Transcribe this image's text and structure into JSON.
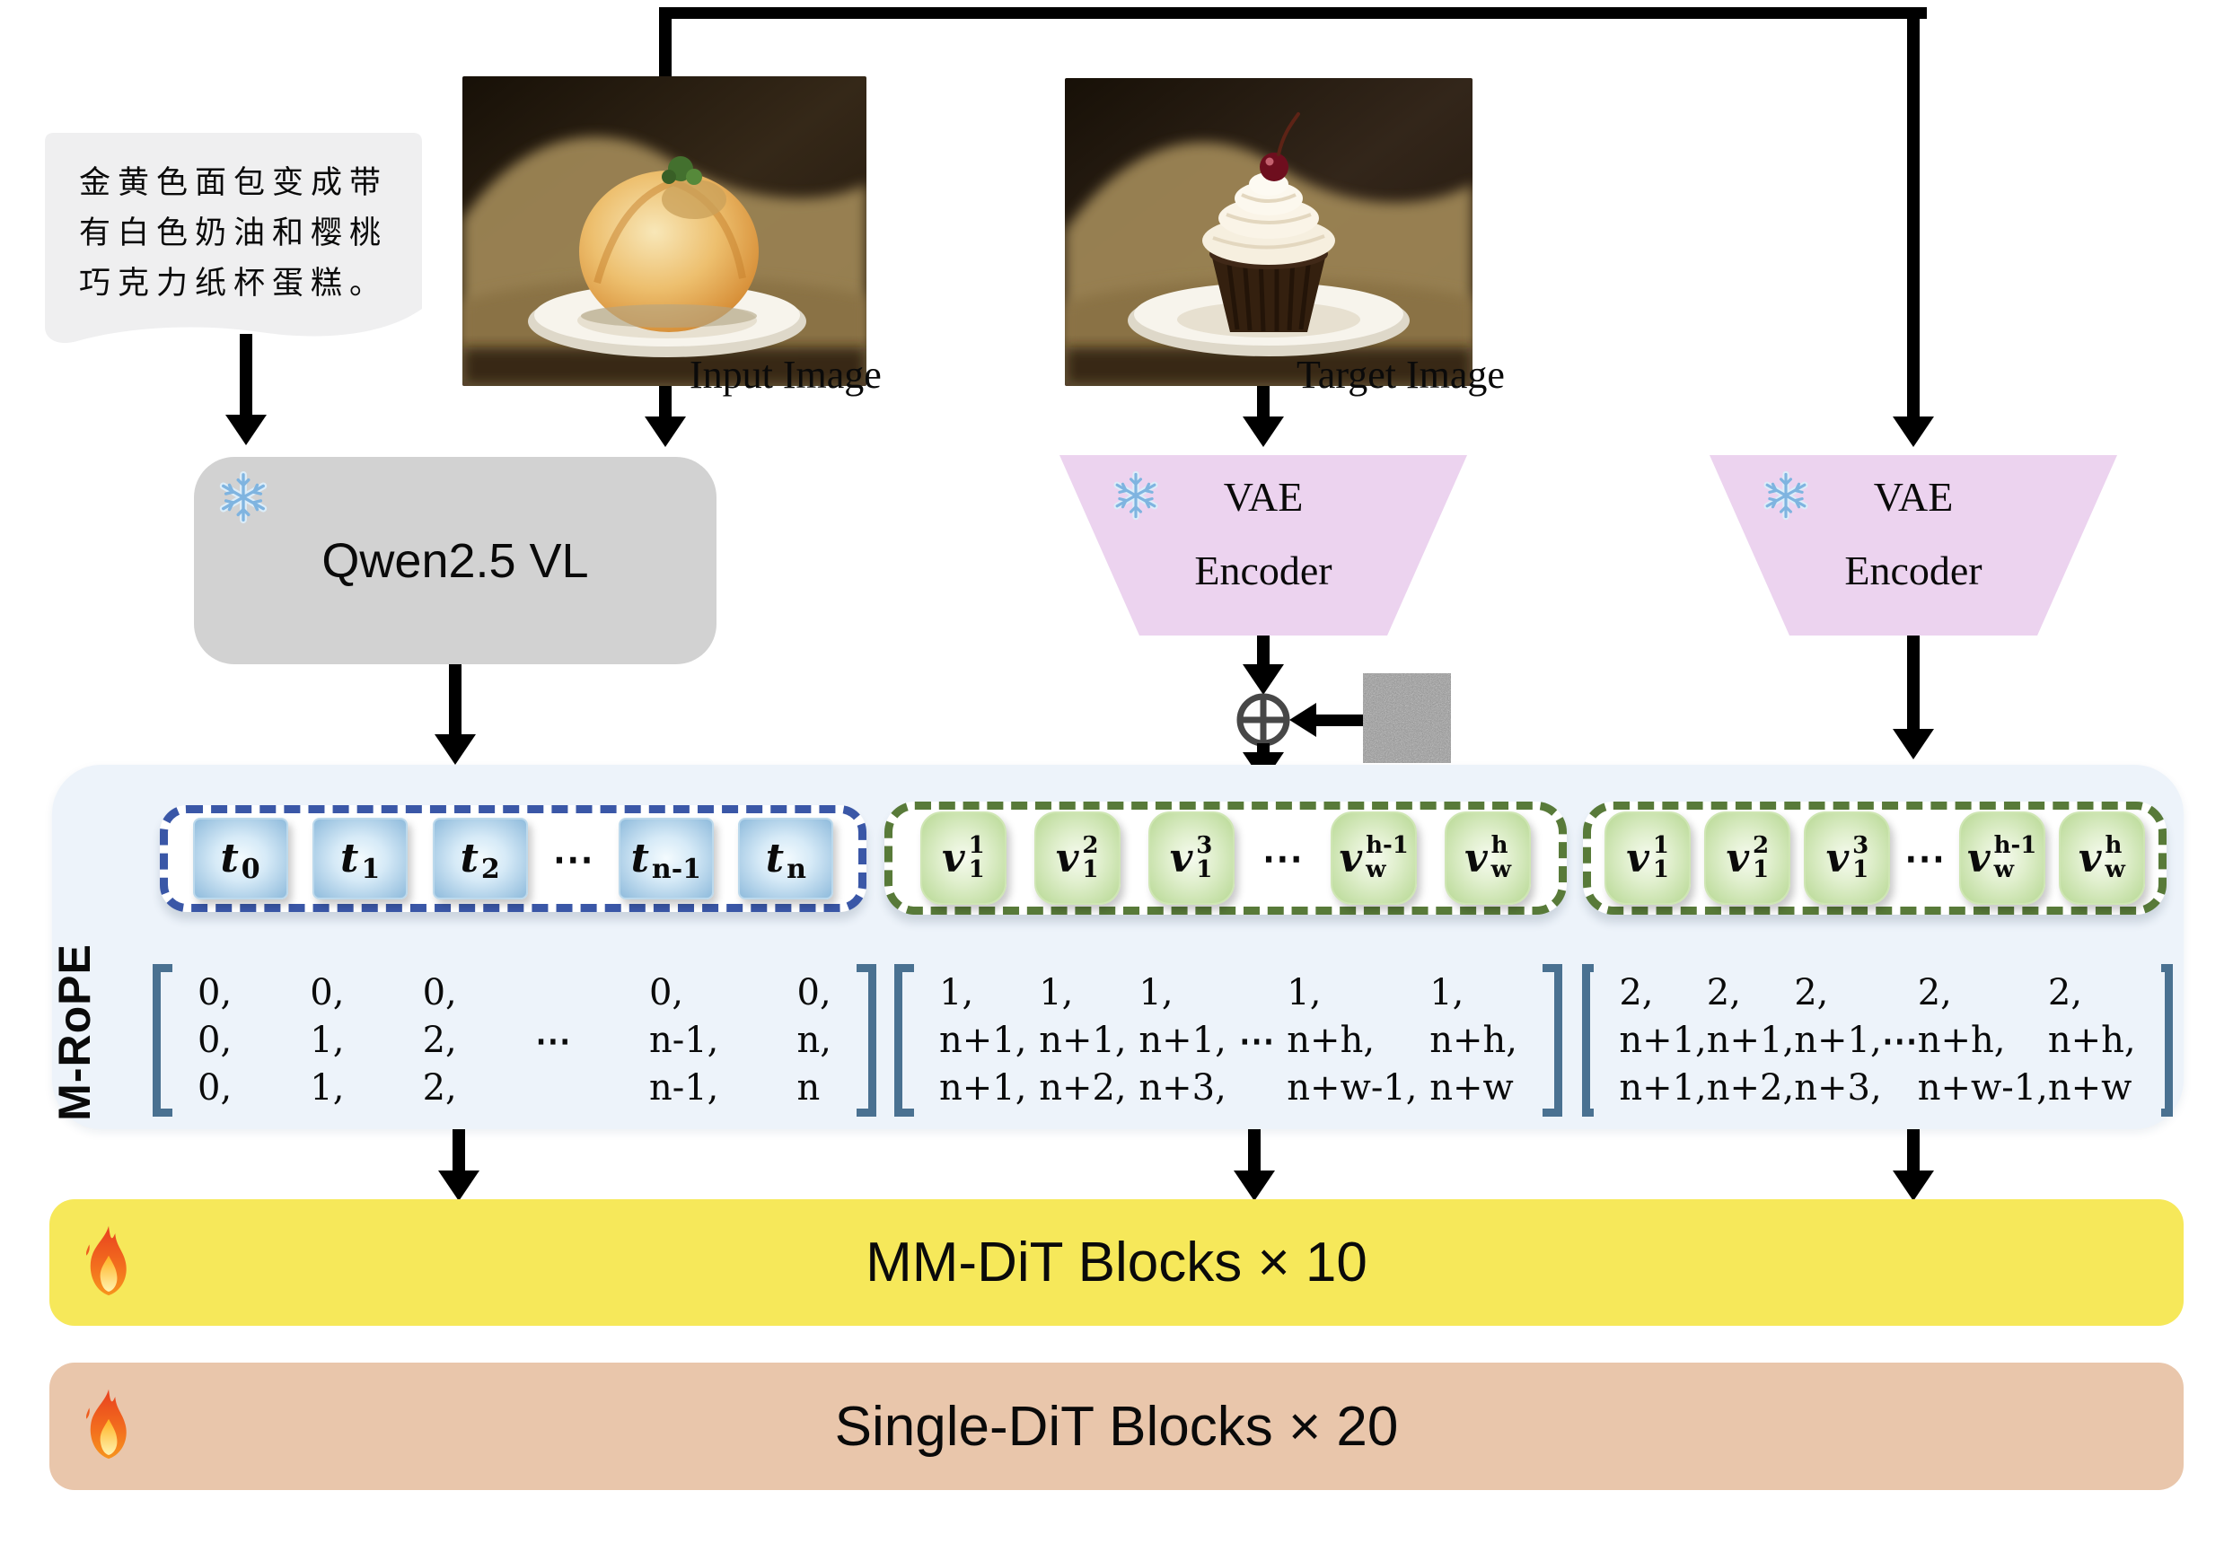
{
  "figure": {
    "prompt": {
      "lines": [
        "金黄色面包变成带",
        "有白色奶油和樱桃",
        "巧克力纸杯蛋糕。"
      ]
    },
    "labels": {
      "input_image": "Input Image",
      "target_image": "Target Image"
    },
    "modules": {
      "qwen": {
        "label": "Qwen2.5 VL"
      },
      "vae_target": {
        "line1": "VAE",
        "line2": "Encoder"
      },
      "vae_input": {
        "line1": "VAE",
        "line2": "Encoder"
      }
    },
    "rope": {
      "label": "M-RoPE",
      "text_tokens": [
        {
          "base": "t",
          "sub": "0"
        },
        {
          "base": "t",
          "sub": "1"
        },
        {
          "base": "t",
          "sub": "2"
        },
        {
          "dots": "⋯"
        },
        {
          "base": "t",
          "sub": "n-1"
        },
        {
          "base": "t",
          "sub": "n"
        }
      ],
      "vision_tokens": [
        {
          "base": "v",
          "sup": "1",
          "sub": "1"
        },
        {
          "base": "v",
          "sup": "2",
          "sub": "1"
        },
        {
          "base": "v",
          "sup": "3",
          "sub": "1"
        },
        {
          "dots": "⋯"
        },
        {
          "base": "v",
          "sup": "h-1",
          "sub": "w"
        },
        {
          "base": "v",
          "sup": "h",
          "sub": "w"
        }
      ],
      "matrices": [
        {
          "columns": [
            [
              "0,",
              "0,",
              "0,"
            ],
            [
              "0,",
              "1,",
              "1,"
            ],
            [
              "0,",
              "2,",
              "2,"
            ],
            [
              "",
              "⋯",
              ""
            ],
            [
              "0,",
              "n-1,",
              "n-1,"
            ],
            [
              "0,",
              "n,",
              "n"
            ]
          ]
        },
        {
          "columns": [
            [
              "1,",
              "n+1,",
              "n+1,"
            ],
            [
              "1,",
              "n+1,",
              "n+2,"
            ],
            [
              "1,",
              "n+1,",
              "n+3,"
            ],
            [
              "",
              "⋯",
              ""
            ],
            [
              "1,",
              "n+h,",
              "n+w-1,"
            ],
            [
              "1,",
              "n+h,",
              "n+w"
            ]
          ]
        },
        {
          "columns": [
            [
              "2,",
              "n+1,",
              "n+1,"
            ],
            [
              "2,",
              "n+1,",
              "n+2,"
            ],
            [
              "2,",
              "n+1,",
              "n+3,"
            ],
            [
              "",
              "⋯",
              ""
            ],
            [
              "2,",
              "n+h,",
              "n+w-1,"
            ],
            [
              "2,",
              "n+h,",
              "n+w"
            ]
          ]
        }
      ]
    },
    "blocks": {
      "mm_dit": "MM-DiT Blocks × 10",
      "single_dit": "Single-DiT Blocks × 20"
    },
    "icons": {
      "frozen": "snowflake-icon",
      "trainable": "fire-icon",
      "noise_add": "circle-plus-icon",
      "noise_patch": "noise-image"
    },
    "colors": {
      "container_bg": "#edf3fa",
      "qwen_box": "#d2d2d2",
      "vae_box": "#ecd3ef",
      "mmdit_bar": "#f6e85a",
      "singledit_bar": "#e9c6ab",
      "text_token_dash": "#3a57a7",
      "vision_token_dash": "#587a39",
      "text_token_fill": "#8fbbdc",
      "vision_token_fill": "#b7d893",
      "bracket": "#4a7191",
      "prompt_box": "#efeff0"
    }
  }
}
